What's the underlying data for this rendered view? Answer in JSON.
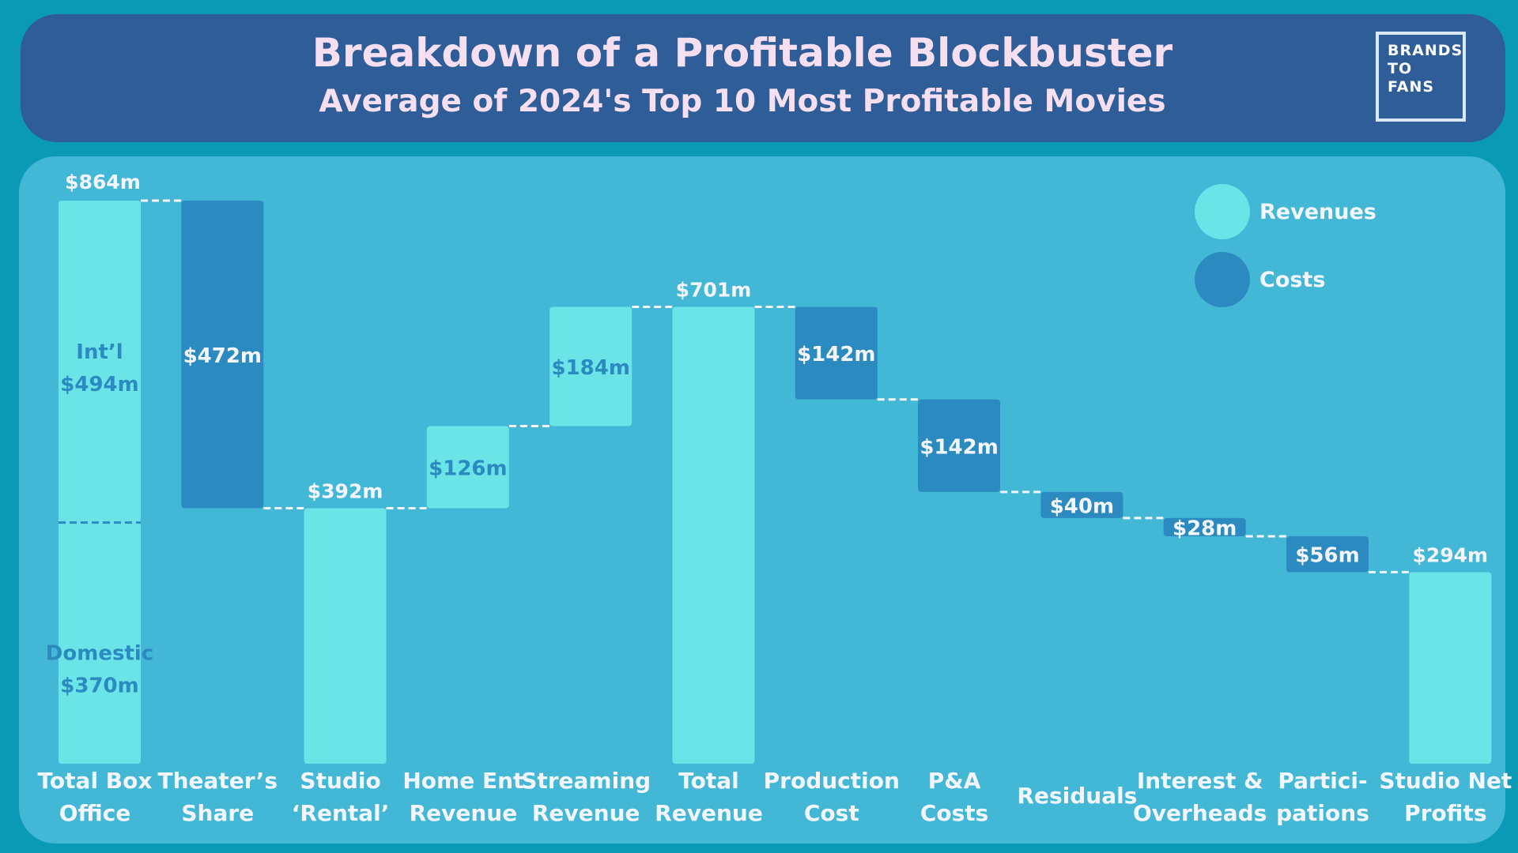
{
  "header": {
    "title": "Breakdown of a Profitable Blockbuster",
    "subtitle": "Average of 2024's Top 10 Most Profitable Movies",
    "logo_lines": [
      "BRANDS",
      "TO",
      "FANS"
    ]
  },
  "colors": {
    "background": "#0a9ab5",
    "header": "#2e5d98",
    "panel": "#42b8d6",
    "revenue": "#6ae4e6",
    "cost": "#2b8ac0",
    "label_light": "#f4f6ff",
    "label_dark": "#2b8ac0"
  },
  "chart_data": {
    "type": "waterfall",
    "unit": "$m",
    "legend": [
      {
        "name": "Revenues",
        "kind": "revenue"
      },
      {
        "name": "Costs",
        "kind": "cost"
      }
    ],
    "legend_position": "top-right",
    "steps": [
      {
        "label_top": "Total Box",
        "label_bottom": "Office",
        "kind": "revenue",
        "start": 0,
        "end": 864,
        "value_label": "$864m",
        "segments": [
          {
            "name": "Domestic",
            "value": 370,
            "value_label": "$370m"
          },
          {
            "name": "Int’l",
            "value": 494,
            "value_label": "$494m"
          }
        ]
      },
      {
        "label_top": "Theater’s",
        "label_bottom": "Share",
        "kind": "cost",
        "start": 864,
        "end": 392,
        "value_label": "$472m"
      },
      {
        "label_top": "Studio",
        "label_bottom": "‘Rental’",
        "kind": "revenue",
        "start": 0,
        "end": 392,
        "value_label": "$392m"
      },
      {
        "label_top": "Home Ent",
        "label_bottom": "Revenue",
        "kind": "revenue",
        "start": 392,
        "end": 518,
        "value_label": "$126m"
      },
      {
        "label_top": "Streaming",
        "label_bottom": "Revenue",
        "kind": "revenue",
        "start": 518,
        "end": 701,
        "value_label": "$184m"
      },
      {
        "label_top": "Total",
        "label_bottom": "Revenue",
        "kind": "revenue",
        "start": 0,
        "end": 701,
        "value_label": "$701m"
      },
      {
        "label_top": "Production",
        "label_bottom": "Cost",
        "kind": "cost",
        "start": 701,
        "end": 559,
        "value_label": "$142m"
      },
      {
        "label_top": "P&A",
        "label_bottom": "Costs",
        "kind": "cost",
        "start": 559,
        "end": 417,
        "value_label": "$142m"
      },
      {
        "label_top": "",
        "label_bottom": "Residuals",
        "kind": "cost",
        "start": 417,
        "end": 377,
        "value_label": "$40m"
      },
      {
        "label_top": "Interest &",
        "label_bottom": "Overheads",
        "kind": "cost",
        "start": 377,
        "end": 349,
        "value_label": "$28m"
      },
      {
        "label_top": "Partici-",
        "label_bottom": "pations",
        "kind": "cost",
        "start": 349,
        "end": 294,
        "value_label": "$56m"
      },
      {
        "label_top": "Studio Net",
        "label_bottom": "Profits",
        "kind": "revenue",
        "start": 0,
        "end": 294,
        "value_label": "$294m"
      }
    ]
  }
}
